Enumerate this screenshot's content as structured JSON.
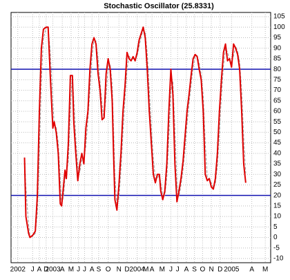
{
  "chart_data": {
    "type": "line",
    "title": "Stochastic Oscillator (25.8331)",
    "x": [
      38,
      40,
      44,
      46,
      50,
      54,
      57,
      60,
      63,
      66,
      70,
      73,
      76,
      80,
      82,
      85,
      88,
      91,
      93,
      96,
      98,
      100,
      103,
      106,
      109,
      111,
      114,
      117,
      120,
      123,
      126,
      129,
      132,
      135,
      138,
      141,
      144,
      147,
      150,
      153,
      156,
      159,
      162,
      165,
      168,
      170,
      172,
      175,
      178,
      181,
      184,
      187,
      190,
      193,
      196,
      199,
      202,
      205,
      208,
      211,
      214,
      217,
      220,
      223,
      226,
      229,
      232,
      235,
      238,
      240,
      243,
      246,
      249,
      252,
      255,
      258,
      261,
      264,
      267,
      270,
      273,
      276,
      279,
      282,
      285,
      288,
      291,
      294,
      297,
      300,
      303,
      306,
      309,
      312,
      315,
      318,
      321,
      324,
      327,
      330,
      333,
      336,
      339,
      342,
      345,
      348,
      351,
      354,
      357,
      360,
      363,
      366
    ],
    "series": [
      {
        "color": "#999999",
        "dashed": true,
        "values": [
          38,
          24,
          6,
          1,
          0.5,
          2,
          11.5,
          40,
          75,
          94.5,
          99.5,
          100,
          89,
          65,
          53.5,
          52.5,
          45,
          28,
          15.5,
          20,
          28.5,
          30,
          36.5,
          61,
          77,
          66,
          47.5,
          33.5,
          31,
          37.5,
          37.5,
          43.5,
          56,
          70,
          86,
          93.5,
          93.5,
          85,
          74,
          63,
          56.5,
          67.5,
          81.5,
          82.5,
          72.5,
          52.5,
          29,
          15.5,
          19,
          32.5,
          50,
          66,
          80,
          86.5,
          84.5,
          85,
          85,
          86,
          91,
          95.5,
          98.5,
          97.5,
          87.5,
          70,
          52.5,
          37.5,
          28,
          28,
          30,
          26,
          20,
          20,
          28.5,
          47.5,
          70,
          74,
          51.5,
          26,
          19.5,
          25,
          32,
          42,
          54,
          64,
          72.5,
          81,
          86,
          86.5,
          83,
          77.5,
          67.5,
          45,
          28.5,
          27.5,
          26,
          23.5,
          25.5,
          34,
          50,
          67.5,
          81.5,
          90,
          88,
          84.5,
          83,
          86.5,
          91,
          88.5,
          83.5,
          70,
          47.5,
          30.5
        ]
      },
      {
        "color": "#e00000",
        "dashed": false,
        "values": [
          38,
          10,
          2,
          0,
          1,
          3,
          20,
          60,
          90,
          99,
          100,
          100,
          78,
          52,
          55,
          50,
          40,
          16,
          15,
          25,
          32,
          28,
          45,
          77,
          77,
          55,
          40,
          27,
          35,
          40,
          35,
          52,
          60,
          80,
          92,
          95,
          92,
          78,
          70,
          56,
          57,
          78,
          85,
          80,
          65,
          40,
          18,
          13,
          25,
          40,
          60,
          72,
          88,
          85,
          84,
          86,
          84,
          88,
          94,
          97,
          100,
          95,
          80,
          60,
          45,
          30,
          26,
          30,
          30,
          22,
          18,
          22,
          35,
          60,
          80,
          68,
          35,
          17,
          22,
          28,
          36,
          48,
          60,
          68,
          77,
          85,
          87,
          86,
          80,
          75,
          60,
          30,
          27,
          28,
          24,
          23,
          28,
          40,
          60,
          75,
          88,
          92,
          84,
          85,
          81,
          92,
          90,
          87,
          80,
          60,
          35,
          26
        ]
      }
    ],
    "hlines": [
      80,
      20
    ],
    "hline_color": "#1010b0",
    "xlim": [
      18,
      403
    ],
    "xticks": [
      {
        "value": 28,
        "label": "2002"
      },
      {
        "value": 50,
        "label": "J"
      },
      {
        "value": 60,
        "label": "A"
      },
      {
        "value": 70,
        "label": "D"
      },
      {
        "value": 80,
        "label": "2003"
      },
      {
        "value": 94,
        "label": "A"
      },
      {
        "value": 107,
        "label": "M"
      },
      {
        "value": 118,
        "label": "J"
      },
      {
        "value": 127,
        "label": "J"
      },
      {
        "value": 138,
        "label": "A"
      },
      {
        "value": 148,
        "label": "S"
      },
      {
        "value": 162,
        "label": "O"
      },
      {
        "value": 178,
        "label": "N"
      },
      {
        "value": 190,
        "label": "D"
      },
      {
        "value": 205,
        "label": "2004"
      },
      {
        "value": 218,
        "label": "M"
      },
      {
        "value": 227,
        "label": "A"
      },
      {
        "value": 242,
        "label": "M"
      },
      {
        "value": 255,
        "label": "J"
      },
      {
        "value": 265,
        "label": "J"
      },
      {
        "value": 278,
        "label": "A"
      },
      {
        "value": 290,
        "label": "S"
      },
      {
        "value": 302,
        "label": "O"
      },
      {
        "value": 315,
        "label": "N"
      },
      {
        "value": 328,
        "label": "D"
      },
      {
        "value": 345,
        "label": "2005"
      },
      {
        "value": 375,
        "label": "A"
      },
      {
        "value": 395,
        "label": "M"
      }
    ],
    "ylim": [
      -12,
      107
    ],
    "yticks": [
      -10,
      -5,
      0,
      5,
      10,
      15,
      20,
      25,
      30,
      35,
      40,
      45,
      50,
      55,
      60,
      65,
      70,
      75,
      80,
      85,
      90,
      95,
      100,
      105
    ],
    "grid": true
  }
}
